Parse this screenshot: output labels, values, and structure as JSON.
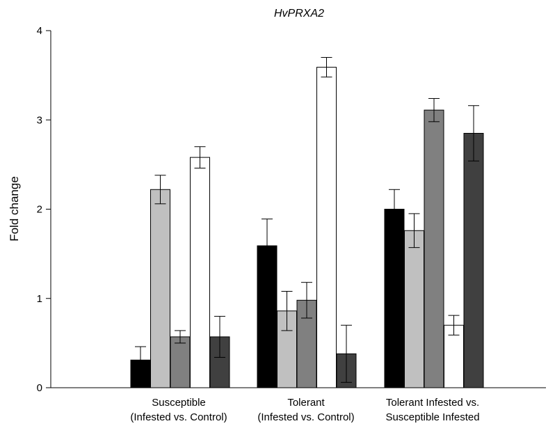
{
  "chart_data": {
    "type": "bar",
    "title": "HvPRXA2",
    "xlabel": "",
    "ylabel": "Fold change",
    "ylim": [
      0,
      4
    ],
    "yticks": [
      0,
      1,
      2,
      3,
      4
    ],
    "grid": false,
    "legend": "none",
    "categories": [
      [
        "Susceptible",
        "(Infested vs. Control)"
      ],
      [
        "Tolerant",
        "(Infested vs. Control)"
      ],
      [
        "Tolerant Infested vs.",
        "Susceptible Infested"
      ]
    ],
    "series": [
      {
        "color": "#000000",
        "values": [
          0.31,
          1.59,
          2.0
        ],
        "errors": [
          0.15,
          0.3,
          0.22
        ]
      },
      {
        "color": "#c0c0c0",
        "values": [
          2.22,
          0.86,
          1.76
        ],
        "errors": [
          0.16,
          0.22,
          0.19
        ]
      },
      {
        "color": "#808080",
        "values": [
          0.57,
          0.98,
          3.11
        ],
        "errors": [
          0.07,
          0.2,
          0.13
        ]
      },
      {
        "color": "#ffffff",
        "values": [
          2.58,
          3.59,
          0.7
        ],
        "errors": [
          0.12,
          0.11,
          0.11
        ]
      },
      {
        "color": "#404040",
        "values": [
          0.57,
          0.38,
          2.85
        ],
        "errors": [
          0.23,
          0.32,
          0.31
        ]
      }
    ]
  }
}
